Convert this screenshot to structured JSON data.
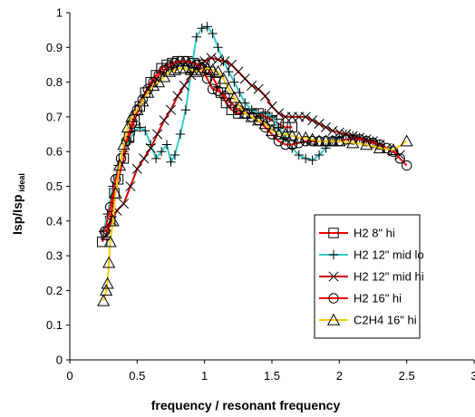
{
  "chart_data": {
    "type": "line",
    "title": "",
    "xlabel": "frequency / resonant frequency",
    "ylabel_main": "Isp/Isp",
    "ylabel_sub": "ideal",
    "xlim": [
      0,
      3
    ],
    "ylim": [
      0,
      1
    ],
    "x_ticks": [
      "0",
      "0.5",
      "1",
      "1.5",
      "2",
      "2.5",
      "3"
    ],
    "y_ticks": [
      "0",
      "0.1",
      "0.2",
      "0.3",
      "0.4",
      "0.5",
      "0.6",
      "0.7",
      "0.8",
      "0.9",
      "1"
    ],
    "grid": false,
    "legend_position": "right",
    "series": [
      {
        "name": "H2 8\" hi",
        "color": "#ff0000",
        "marker": "square",
        "points": [
          [
            0.24,
            0.34
          ],
          [
            0.27,
            0.36
          ],
          [
            0.3,
            0.4
          ],
          [
            0.33,
            0.48
          ],
          [
            0.36,
            0.52
          ],
          [
            0.4,
            0.58
          ],
          [
            0.44,
            0.64
          ],
          [
            0.48,
            0.69
          ],
          [
            0.52,
            0.73
          ],
          [
            0.56,
            0.77
          ],
          [
            0.6,
            0.8
          ],
          [
            0.64,
            0.82
          ],
          [
            0.68,
            0.84
          ],
          [
            0.72,
            0.85
          ],
          [
            0.76,
            0.855
          ],
          [
            0.8,
            0.86
          ],
          [
            0.84,
            0.86
          ],
          [
            0.88,
            0.86
          ],
          [
            0.92,
            0.855
          ],
          [
            0.96,
            0.85
          ],
          [
            1.0,
            0.85
          ],
          [
            1.04,
            0.83
          ],
          [
            1.08,
            0.8
          ],
          [
            1.12,
            0.77
          ],
          [
            1.16,
            0.74
          ],
          [
            1.2,
            0.72
          ],
          [
            1.25,
            0.71
          ],
          [
            1.3,
            0.71
          ],
          [
            1.35,
            0.71
          ],
          [
            1.4,
            0.71
          ],
          [
            1.45,
            0.7
          ],
          [
            1.5,
            0.69
          ],
          [
            1.55,
            0.68
          ],
          [
            1.6,
            0.67
          ],
          [
            1.65,
            0.67
          ]
        ]
      },
      {
        "name": "H2 12\" mid lo",
        "color": "#33cccc",
        "marker": "plus",
        "points": [
          [
            0.25,
            0.37
          ],
          [
            0.28,
            0.42
          ],
          [
            0.32,
            0.5
          ],
          [
            0.36,
            0.56
          ],
          [
            0.4,
            0.6
          ],
          [
            0.44,
            0.63
          ],
          [
            0.48,
            0.66
          ],
          [
            0.52,
            0.67
          ],
          [
            0.56,
            0.66
          ],
          [
            0.6,
            0.62
          ],
          [
            0.64,
            0.58
          ],
          [
            0.68,
            0.6
          ],
          [
            0.72,
            0.62
          ],
          [
            0.75,
            0.57
          ],
          [
            0.78,
            0.59
          ],
          [
            0.82,
            0.65
          ],
          [
            0.86,
            0.72
          ],
          [
            0.9,
            0.83
          ],
          [
            0.94,
            0.93
          ],
          [
            0.98,
            0.955
          ],
          [
            1.02,
            0.96
          ],
          [
            1.06,
            0.94
          ],
          [
            1.1,
            0.9
          ],
          [
            1.14,
            0.86
          ],
          [
            1.18,
            0.83
          ],
          [
            1.22,
            0.8
          ],
          [
            1.26,
            0.77
          ],
          [
            1.3,
            0.74
          ],
          [
            1.35,
            0.72
          ],
          [
            1.4,
            0.71
          ],
          [
            1.45,
            0.71
          ],
          [
            1.5,
            0.7
          ],
          [
            1.55,
            0.67
          ],
          [
            1.6,
            0.64
          ],
          [
            1.65,
            0.61
          ],
          [
            1.7,
            0.59
          ],
          [
            1.75,
            0.58
          ],
          [
            1.8,
            0.575
          ],
          [
            1.85,
            0.59
          ],
          [
            1.9,
            0.61
          ],
          [
            1.95,
            0.63
          ],
          [
            2.0,
            0.64
          ],
          [
            2.05,
            0.65
          ],
          [
            2.1,
            0.645
          ],
          [
            2.15,
            0.64
          ],
          [
            2.2,
            0.635
          ],
          [
            2.25,
            0.63
          ],
          [
            2.3,
            0.62
          ]
        ]
      },
      {
        "name": "H2 12\" mid hi",
        "color": "#cc0000",
        "marker": "x",
        "points": [
          [
            0.27,
            0.36
          ],
          [
            0.31,
            0.4
          ],
          [
            0.35,
            0.43
          ],
          [
            0.4,
            0.45
          ],
          [
            0.45,
            0.5
          ],
          [
            0.5,
            0.55
          ],
          [
            0.55,
            0.58
          ],
          [
            0.6,
            0.61
          ],
          [
            0.65,
            0.65
          ],
          [
            0.7,
            0.69
          ],
          [
            0.75,
            0.72
          ],
          [
            0.8,
            0.76
          ],
          [
            0.85,
            0.79
          ],
          [
            0.9,
            0.82
          ],
          [
            0.95,
            0.845
          ],
          [
            1.0,
            0.86
          ],
          [
            1.05,
            0.87
          ],
          [
            1.1,
            0.865
          ],
          [
            1.15,
            0.86
          ],
          [
            1.2,
            0.85
          ],
          [
            1.25,
            0.83
          ],
          [
            1.3,
            0.81
          ],
          [
            1.35,
            0.79
          ],
          [
            1.4,
            0.78
          ],
          [
            1.45,
            0.76
          ],
          [
            1.5,
            0.73
          ],
          [
            1.55,
            0.71
          ],
          [
            1.6,
            0.7
          ],
          [
            1.65,
            0.7
          ],
          [
            1.7,
            0.7
          ],
          [
            1.75,
            0.7
          ],
          [
            1.8,
            0.69
          ],
          [
            1.85,
            0.68
          ],
          [
            1.9,
            0.67
          ],
          [
            1.95,
            0.66
          ],
          [
            2.0,
            0.655
          ],
          [
            2.05,
            0.65
          ],
          [
            2.1,
            0.645
          ],
          [
            2.15,
            0.64
          ],
          [
            2.2,
            0.635
          ],
          [
            2.25,
            0.63
          ],
          [
            2.3,
            0.62
          ],
          [
            2.35,
            0.61
          ],
          [
            2.4,
            0.6
          ],
          [
            2.45,
            0.59
          ]
        ]
      },
      {
        "name": "H2 16\" hi",
        "color": "#ff0000",
        "marker": "circle",
        "points": [
          [
            0.26,
            0.37
          ],
          [
            0.3,
            0.44
          ],
          [
            0.34,
            0.52
          ],
          [
            0.38,
            0.58
          ],
          [
            0.42,
            0.63
          ],
          [
            0.46,
            0.68
          ],
          [
            0.5,
            0.72
          ],
          [
            0.54,
            0.75
          ],
          [
            0.58,
            0.78
          ],
          [
            0.62,
            0.8
          ],
          [
            0.66,
            0.82
          ],
          [
            0.7,
            0.835
          ],
          [
            0.74,
            0.845
          ],
          [
            0.78,
            0.855
          ],
          [
            0.82,
            0.86
          ],
          [
            0.86,
            0.86
          ],
          [
            0.9,
            0.855
          ],
          [
            0.94,
            0.85
          ],
          [
            0.98,
            0.84
          ],
          [
            1.02,
            0.81
          ],
          [
            1.06,
            0.78
          ],
          [
            1.1,
            0.775
          ],
          [
            1.15,
            0.76
          ],
          [
            1.2,
            0.74
          ],
          [
            1.25,
            0.72
          ],
          [
            1.3,
            0.71
          ],
          [
            1.35,
            0.7
          ],
          [
            1.4,
            0.69
          ],
          [
            1.45,
            0.67
          ],
          [
            1.5,
            0.65
          ],
          [
            1.55,
            0.63
          ],
          [
            1.6,
            0.62
          ],
          [
            1.65,
            0.62
          ],
          [
            1.7,
            0.625
          ],
          [
            1.75,
            0.63
          ],
          [
            1.8,
            0.63
          ],
          [
            1.85,
            0.63
          ],
          [
            1.9,
            0.63
          ],
          [
            1.95,
            0.63
          ],
          [
            2.0,
            0.63
          ],
          [
            2.05,
            0.635
          ],
          [
            2.1,
            0.635
          ],
          [
            2.15,
            0.635
          ],
          [
            2.2,
            0.63
          ],
          [
            2.25,
            0.625
          ],
          [
            2.3,
            0.62
          ],
          [
            2.35,
            0.61
          ],
          [
            2.4,
            0.6
          ],
          [
            2.45,
            0.58
          ],
          [
            2.5,
            0.56
          ]
        ]
      },
      {
        "name": "C2H4 16\" hi",
        "color": "#ffcc00",
        "marker": "triangle",
        "points": [
          [
            0.25,
            0.17
          ],
          [
            0.27,
            0.2
          ],
          [
            0.28,
            0.22
          ],
          [
            0.29,
            0.28
          ],
          [
            0.3,
            0.34
          ],
          [
            0.32,
            0.4
          ],
          [
            0.34,
            0.48
          ],
          [
            0.37,
            0.56
          ],
          [
            0.4,
            0.62
          ],
          [
            0.43,
            0.67
          ],
          [
            0.46,
            0.7
          ],
          [
            0.5,
            0.72
          ],
          [
            0.54,
            0.745
          ],
          [
            0.58,
            0.77
          ],
          [
            0.62,
            0.79
          ],
          [
            0.66,
            0.8
          ],
          [
            0.7,
            0.815
          ],
          [
            0.74,
            0.83
          ],
          [
            0.78,
            0.835
          ],
          [
            0.82,
            0.84
          ],
          [
            0.86,
            0.84
          ],
          [
            0.9,
            0.835
          ],
          [
            0.94,
            0.83
          ],
          [
            0.98,
            0.835
          ],
          [
            1.02,
            0.84
          ],
          [
            1.06,
            0.835
          ],
          [
            1.1,
            0.83
          ],
          [
            1.14,
            0.81
          ],
          [
            1.18,
            0.78
          ],
          [
            1.22,
            0.755
          ],
          [
            1.26,
            0.73
          ],
          [
            1.3,
            0.71
          ],
          [
            1.35,
            0.7
          ],
          [
            1.4,
            0.69
          ],
          [
            1.45,
            0.68
          ],
          [
            1.5,
            0.66
          ],
          [
            1.55,
            0.65
          ],
          [
            1.6,
            0.65
          ],
          [
            1.65,
            0.645
          ],
          [
            1.7,
            0.64
          ],
          [
            1.75,
            0.64
          ],
          [
            1.8,
            0.635
          ],
          [
            1.85,
            0.63
          ],
          [
            1.9,
            0.63
          ],
          [
            1.95,
            0.63
          ],
          [
            2.0,
            0.63
          ],
          [
            2.1,
            0.625
          ],
          [
            2.2,
            0.62
          ],
          [
            2.3,
            0.61
          ],
          [
            2.4,
            0.605
          ],
          [
            2.5,
            0.63
          ]
        ]
      }
    ]
  }
}
